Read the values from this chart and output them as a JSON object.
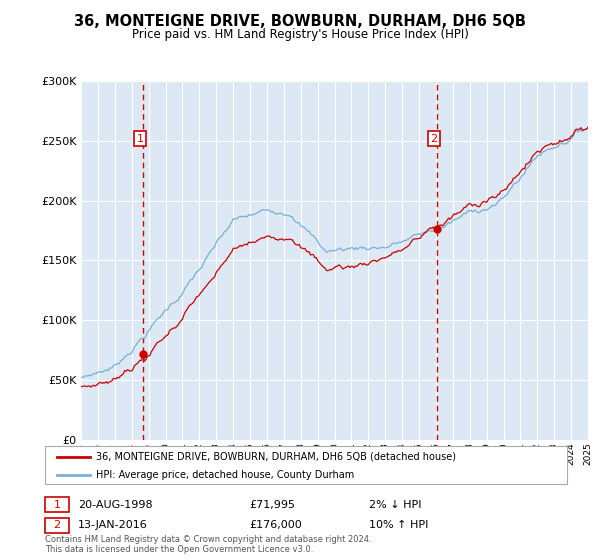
{
  "title": "36, MONTEIGNE DRIVE, BOWBURN, DURHAM, DH6 5QB",
  "subtitle": "Price paid vs. HM Land Registry's House Price Index (HPI)",
  "property_label": "36, MONTEIGNE DRIVE, BOWBURN, DURHAM, DH6 5QB (detached house)",
  "hpi_label": "HPI: Average price, detached house, County Durham",
  "annotation1_date": "20-AUG-1998",
  "annotation1_price": "£71,995",
  "annotation1_hpi": "2% ↓ HPI",
  "annotation2_date": "13-JAN-2016",
  "annotation2_price": "£176,000",
  "annotation2_hpi": "10% ↑ HPI",
  "footnote": "Contains HM Land Registry data © Crown copyright and database right 2024.\nThis data is licensed under the Open Government Licence v3.0.",
  "ylim": [
    0,
    300000
  ],
  "yticks": [
    0,
    50000,
    100000,
    150000,
    200000,
    250000,
    300000
  ],
  "background_color": "#dce9f5",
  "fig_background_color": "#ffffff",
  "grid_color": "#ffffff",
  "line_color_property": "#cc0000",
  "line_color_hpi": "#7ab0d4",
  "sale1_year": 1998.64,
  "sale1_price": 71995,
  "sale2_year": 2016.04,
  "sale2_price": 176000,
  "xmin": 1995,
  "xmax": 2025
}
